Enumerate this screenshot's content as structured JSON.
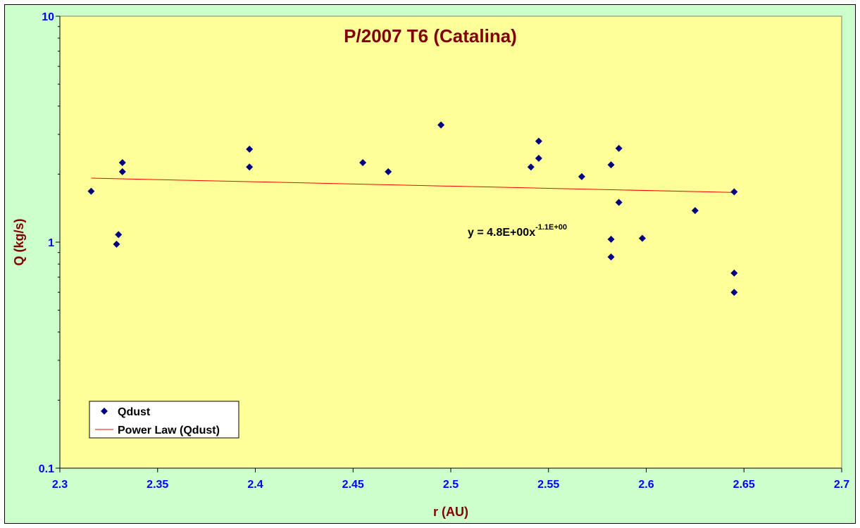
{
  "colors": {
    "chart_area_bg": "#ccffcc",
    "plot_bg": "#ffff99",
    "title_color": "#800000",
    "tick_label_color": "#0000ff",
    "axis_title_color": "#800000",
    "marker_color": "#000080",
    "trendline_color": "#ff0000"
  },
  "chart_data": {
    "type": "scatter",
    "title": "P/2007 T6 (Catalina)",
    "xlabel": "r (AU)",
    "ylabel": "Q (kg/s)",
    "xlim": [
      2.3,
      2.7
    ],
    "ylim": [
      0.1,
      10
    ],
    "y_scale": "log",
    "x_ticks": [
      "2.3",
      "2.35",
      "2.4",
      "2.45",
      "2.5",
      "2.55",
      "2.6",
      "2.65",
      "2.7"
    ],
    "y_ticks": [
      "0.1",
      "1",
      "10"
    ],
    "grid": false,
    "legend_position": "bottom-left",
    "series": [
      {
        "name": "Qdust",
        "marker": "diamond",
        "x": [
          2.316,
          2.329,
          2.33,
          2.332,
          2.332,
          2.397,
          2.397,
          2.455,
          2.468,
          2.495,
          2.541,
          2.545,
          2.545,
          2.567,
          2.582,
          2.582,
          2.582,
          2.586,
          2.586,
          2.598,
          2.625,
          2.645,
          2.645,
          2.645
        ],
        "y": [
          1.68,
          0.98,
          1.08,
          2.05,
          2.25,
          2.15,
          2.58,
          2.25,
          2.05,
          3.3,
          2.15,
          2.35,
          2.8,
          1.95,
          2.2,
          1.03,
          0.86,
          2.6,
          1.5,
          1.04,
          1.38,
          1.67,
          0.73,
          0.6
        ]
      }
    ],
    "trendline": {
      "name": "Power Law (Qdust)",
      "type": "power",
      "x_range": [
        2.316,
        2.645
      ],
      "y_at_start": 1.92,
      "y_at_end": 1.66,
      "equation": "y = 4.8E+00x",
      "equation_exponent": "-1.1E+00"
    }
  }
}
